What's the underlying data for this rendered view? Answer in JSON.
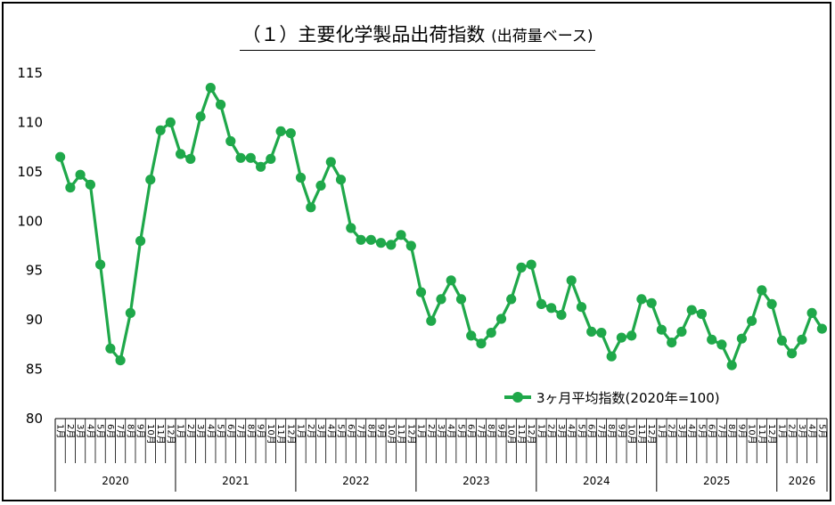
{
  "chart_data": {
    "type": "line",
    "title": "（１）主要化学製品出荷指数",
    "subtitle": "(出荷量ベース)",
    "legend": "3ヶ月平均指数(2020年=100)",
    "legend_position": "bottom-right",
    "series_color": "#1fa84a",
    "ylim": [
      80,
      115
    ],
    "yticks": [
      80,
      85,
      90,
      95,
      100,
      105,
      110,
      115
    ],
    "grid": false,
    "years": [
      {
        "label": "2020",
        "months": [
          "1",
          "2",
          "3",
          "4",
          "5",
          "6",
          "7",
          "8",
          "9",
          "10",
          "11",
          "12"
        ]
      },
      {
        "label": "2021",
        "months": [
          "1",
          "2",
          "3",
          "4",
          "5",
          "6",
          "7",
          "8",
          "9",
          "10",
          "11",
          "12"
        ]
      },
      {
        "label": "2022",
        "months": [
          "1",
          "2",
          "3",
          "4",
          "5",
          "6",
          "7",
          "8",
          "9",
          "10",
          "11",
          "12"
        ]
      },
      {
        "label": "2023",
        "months": [
          "1",
          "2",
          "3",
          "4",
          "5",
          "6",
          "7",
          "8",
          "9",
          "10",
          "11",
          "12"
        ]
      },
      {
        "label": "2024",
        "months": [
          "1",
          "2",
          "3",
          "4",
          "5",
          "6",
          "7",
          "8",
          "9",
          "10",
          "11",
          "12"
        ]
      },
      {
        "label": "2025",
        "months": [
          "1",
          "2",
          "3",
          "4",
          "5",
          "6",
          "7",
          "8",
          "9",
          "10",
          "11",
          "12"
        ]
      },
      {
        "label": "2026",
        "months": [
          "1",
          "2",
          "3",
          "4",
          "5"
        ]
      }
    ],
    "month_suffix": "月",
    "values": [
      106.5,
      103.4,
      104.7,
      103.7,
      95.6,
      87.1,
      85.9,
      90.7,
      98.0,
      104.2,
      109.2,
      110.0,
      106.8,
      106.3,
      110.6,
      113.5,
      111.8,
      108.1,
      106.4,
      106.4,
      105.5,
      106.3,
      109.1,
      108.9,
      104.4,
      101.4,
      103.6,
      106.0,
      104.2,
      99.3,
      98.1,
      98.1,
      97.8,
      97.6,
      98.6,
      97.5,
      92.8,
      89.9,
      92.1,
      94.0,
      92.1,
      88.4,
      87.6,
      88.7,
      90.1,
      92.1,
      95.3,
      95.6,
      91.6,
      91.2,
      90.5,
      94.0,
      91.3,
      88.8,
      88.7,
      86.3,
      88.2,
      88.4,
      92.1,
      91.7,
      89.0,
      87.7,
      88.8,
      91.0,
      90.6,
      88.0,
      87.5,
      85.4,
      88.1,
      89.9,
      93.0,
      91.6,
      87.9,
      86.6,
      88.0,
      90.7,
      89.1
    ]
  }
}
